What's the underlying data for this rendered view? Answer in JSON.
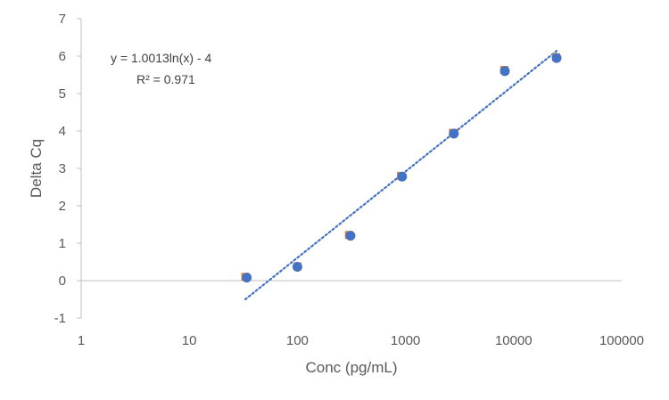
{
  "chart_data": {
    "type": "scatter",
    "title": "",
    "xlabel": "Conc (pg/mL)",
    "ylabel": "Delta Cq",
    "xscale": "log",
    "xlim": [
      1,
      100000
    ],
    "ylim": [
      -1,
      7
    ],
    "x_ticks": [
      1,
      10,
      100,
      1000,
      10000,
      100000
    ],
    "x_tick_labels": [
      "1",
      "10",
      "100",
      "1000",
      "10000",
      "100000"
    ],
    "y_ticks": [
      -1,
      0,
      1,
      2,
      3,
      4,
      5,
      6,
      7
    ],
    "y_tick_labels": [
      "-1",
      "0",
      "1",
      "2",
      "3",
      "4",
      "5",
      "6",
      "7"
    ],
    "grid": false,
    "legend": "none",
    "series": [
      {
        "marker": "circle",
        "color": "#4472C4",
        "x": [
          34,
          100,
          310,
          930,
          2800,
          8300,
          25000
        ],
        "y": [
          0.08,
          0.37,
          1.2,
          2.78,
          3.93,
          5.6,
          5.95
        ]
      },
      {
        "marker": "square",
        "color": "#ED7D31",
        "x": [
          33,
          100,
          300,
          910,
          2750,
          8200,
          24800
        ],
        "y": [
          0.1,
          0.38,
          1.22,
          2.8,
          3.95,
          5.63,
          5.97
        ]
      }
    ],
    "trendline": {
      "style": "dotted",
      "color": "#4472C4",
      "coef": 1.0013,
      "intercept": -4,
      "x_range": [
        33,
        25000
      ],
      "equation": "y = 1.0013ln(x) - 4",
      "r2": "R² = 0.971"
    },
    "colors": {
      "axis": "#bfbfbf",
      "text": "#595959"
    }
  }
}
